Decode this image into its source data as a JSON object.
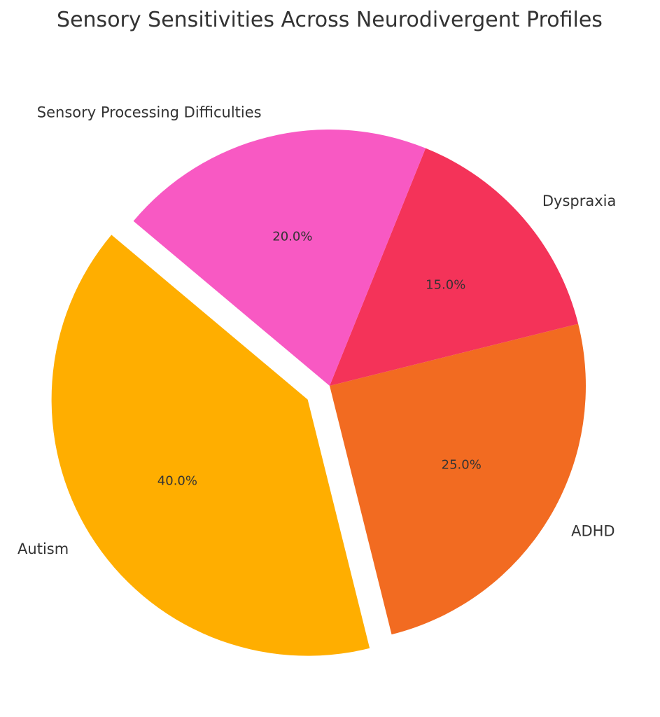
{
  "chart_data": {
    "type": "pie",
    "title": "Sensory Sensitivities Across Neurodivergent Profiles",
    "categories": [
      "Autism",
      "ADHD",
      "Dyspraxia",
      "Sensory Processing Difficulties"
    ],
    "values": [
      40,
      25,
      15,
      20
    ],
    "value_labels": [
      "40.0%",
      "25.0%",
      "15.0%",
      "20.0%"
    ],
    "colors": [
      "#FFAE00",
      "#F26B21",
      "#F43359",
      "#F859C3"
    ],
    "exploded": [
      "Autism"
    ],
    "start_angle_deg": 140,
    "direction": "counterclockwise",
    "legend": "none"
  }
}
